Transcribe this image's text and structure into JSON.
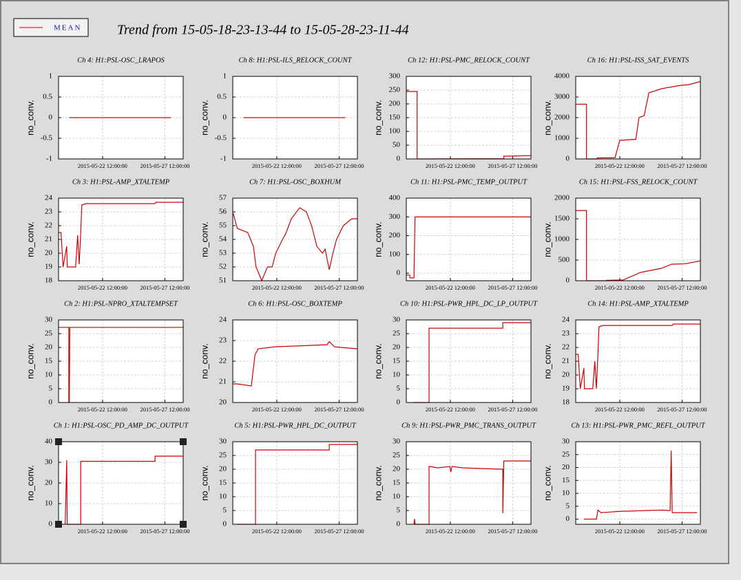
{
  "title": "Trend from 15-05-18-23-13-44 to 15-05-28-23-11-44",
  "chart_data": [
    {
      "type": "line",
      "title": "Ch 4: H1:PSL-OSC_LRAPOS",
      "ylabel": "no_conv.",
      "grid": true,
      "x": [
        "2015-05-19 20:00:00",
        "2015-05-28 00:00:00"
      ],
      "series": [
        {
          "name": "MEAN",
          "color": "#cc0000",
          "values": [
            0,
            0
          ]
        }
      ],
      "xlim": [
        "2015-05-18 23:13:44",
        "2015-05-28 23:11:44"
      ],
      "xticks": [
        "2015-05-22 12:00:00",
        "2015-05-27 12:00:00"
      ],
      "ylim": [
        -1,
        1
      ],
      "yticks": [
        -1,
        -0.5,
        0,
        0.5,
        1
      ]
    },
    {
      "type": "line",
      "title": "Ch 8: H1:PSL-ILS_RELOCK_COUNT",
      "ylabel": "no_conv.",
      "grid": true,
      "x": [
        "2015-05-19 20:00:00",
        "2015-05-28 00:00:00"
      ],
      "series": [
        {
          "name": "MEAN",
          "color": "#cc0000",
          "values": [
            0,
            0
          ]
        }
      ],
      "xlim": [
        "2015-05-18 23:13:44",
        "2015-05-28 23:11:44"
      ],
      "xticks": [
        "2015-05-22 12:00:00",
        "2015-05-27 12:00:00"
      ],
      "ylim": [
        -1,
        1
      ],
      "yticks": [
        -1,
        -0.5,
        0,
        0.5,
        1
      ]
    },
    {
      "type": "line",
      "title": "Ch 12: H1:PSL-PMC_RELOCK_COUNT",
      "ylabel": "no_conv.",
      "grid": true,
      "x": [
        "2015-05-19 00:00:00",
        "2015-05-19 20:00:00",
        "2015-05-19 20:00:00",
        "2015-05-26 19:00:00",
        "2015-05-26 19:00:00",
        "2015-05-28 23:00:00"
      ],
      "series": [
        {
          "name": "MEAN",
          "color": "#cc0000",
          "values": [
            245,
            245,
            0,
            1,
            10,
            12
          ]
        }
      ],
      "xlim": [
        "2015-05-18 23:13:44",
        "2015-05-28 23:11:44"
      ],
      "xticks": [
        "2015-05-22 12:00:00",
        "2015-05-27 12:00:00"
      ],
      "ylim": [
        0,
        300
      ],
      "yticks": [
        0,
        50,
        100,
        150,
        200,
        250,
        300
      ]
    },
    {
      "type": "line",
      "title": "Ch 16: H1:PSL-ISS_SAT_EVENTS",
      "ylabel": "no_conv.",
      "grid": true,
      "x": [
        "2015-05-19 00:00:00",
        "2015-05-19 20:00:00",
        "2015-05-19 20:00:00",
        "2015-05-20 16:00:00",
        "2015-05-20 17:00:00",
        "2015-05-22 03:00:00",
        "2015-05-22 12:00:00",
        "2015-05-23 19:00:00",
        "2015-05-24 01:00:00",
        "2015-05-24 11:00:00",
        "2015-05-24 20:00:00",
        "2015-05-25 20:00:00",
        "2015-05-27 05:00:00",
        "2015-05-28 01:00:00",
        "2015-05-28 23:00:00"
      ],
      "series": [
        {
          "name": "MEAN",
          "color": "#cc0000",
          "values": [
            2650,
            2650,
            0,
            0,
            50,
            60,
            900,
            950,
            2000,
            2100,
            3200,
            3400,
            3550,
            3600,
            3750
          ]
        }
      ],
      "xlim": [
        "2015-05-18 23:13:44",
        "2015-05-28 23:11:44"
      ],
      "xticks": [
        "2015-05-22 12:00:00",
        "2015-05-27 12:00:00"
      ],
      "ylim": [
        0,
        4000
      ],
      "yticks": [
        0,
        1000,
        2000,
        3000,
        4000
      ]
    },
    {
      "type": "line",
      "title": "Ch 3: H1:PSL-AMP_XTALTEMP",
      "ylabel": "no_conv.",
      "grid": true,
      "x": [
        "2015-05-19 00:00:00",
        "2015-05-19 04:00:00",
        "2015-05-19 08:00:00",
        "2015-05-19 15:00:00",
        "2015-05-19 16:00:00",
        "2015-05-20 08:00:00",
        "2015-05-20 12:00:00",
        "2015-05-20 15:00:00",
        "2015-05-20 18:00:00",
        "2015-05-20 20:00:00",
        "2015-05-21 04:00:00",
        "2015-05-26 17:00:00",
        "2015-05-26 19:00:00",
        "2015-05-28 23:00:00"
      ],
      "series": [
        {
          "name": "MEAN",
          "color": "#cc0000",
          "values": [
            21.5,
            21.5,
            19,
            20.5,
            19,
            19,
            21.3,
            19.2,
            21.5,
            23.5,
            23.6,
            23.6,
            23.7,
            23.7
          ]
        }
      ],
      "xlim": [
        "2015-05-18 23:13:44",
        "2015-05-28 23:11:44"
      ],
      "xticks": [
        "2015-05-22 12:00:00",
        "2015-05-27 12:00:00"
      ],
      "ylim": [
        18,
        24
      ],
      "yticks": [
        18,
        19,
        20,
        21,
        22,
        23,
        24
      ]
    },
    {
      "type": "line",
      "title": "Ch 7: H1:PSL-OSC_BOXHUM",
      "ylabel": "no_conv.",
      "grid": true,
      "x": [
        "2015-05-19 00:00:00",
        "2015-05-19 08:00:00",
        "2015-05-20 04:00:00",
        "2015-05-20 15:00:00",
        "2015-05-20 20:00:00",
        "2015-05-21 04:00:00",
        "2015-05-21 07:00:00",
        "2015-05-21 18:00:00",
        "2015-05-22 03:00:00",
        "2015-05-22 10:00:00",
        "2015-05-22 23:00:00",
        "2015-05-23 05:00:00",
        "2015-05-23 16:00:00",
        "2015-05-24 08:00:00",
        "2015-05-24 21:00:00",
        "2015-05-25 07:00:00",
        "2015-05-25 17:00:00",
        "2015-05-26 04:00:00",
        "2015-05-26 09:00:00",
        "2015-05-26 17:00:00",
        "2015-05-27 00:00:00",
        "2015-05-27 07:00:00",
        "2015-05-27 20:00:00",
        "2015-05-28 12:00:00",
        "2015-05-28 23:00:00"
      ],
      "series": [
        {
          "name": "MEAN",
          "color": "#cc0000",
          "values": [
            55.9,
            54.8,
            54.5,
            53.5,
            52,
            51.3,
            51,
            52,
            52,
            53,
            54,
            54.4,
            55.5,
            56.3,
            56,
            55,
            53.5,
            53,
            53.3,
            51.8,
            53,
            54,
            55,
            55.5,
            55.5
          ]
        }
      ],
      "xlim": [
        "2015-05-18 23:13:44",
        "2015-05-28 23:11:44"
      ],
      "xticks": [
        "2015-05-22 12:00:00",
        "2015-05-27 12:00:00"
      ],
      "ylim": [
        51,
        57
      ],
      "yticks": [
        51,
        52,
        53,
        54,
        55,
        56,
        57
      ]
    },
    {
      "type": "line",
      "title": "Ch 11: H1:PSL-PMC_TEMP_OUTPUT",
      "ylabel": "no_conv.",
      "grid": true,
      "x": [
        "2015-05-19 00:00:00",
        "2015-05-19 06:00:00",
        "2015-05-19 06:00:00",
        "2015-05-19 14:00:00",
        "2015-05-19 16:00:00",
        "2015-05-28 23:00:00"
      ],
      "series": [
        {
          "name": "MEAN",
          "color": "#cc0000",
          "values": [
            -10,
            -10,
            -25,
            -25,
            300,
            300
          ]
        }
      ],
      "xlim": [
        "2015-05-18 23:13:44",
        "2015-05-28 23:11:44"
      ],
      "xticks": [
        "2015-05-22 12:00:00",
        "2015-05-27 12:00:00"
      ],
      "ylim": [
        -40,
        400
      ],
      "yticks": [
        0,
        100,
        200,
        300,
        400
      ]
    },
    {
      "type": "line",
      "title": "Ch 15: H1:PSL-FSS_RELOCK_COUNT",
      "ylabel": "no_conv.",
      "grid": true,
      "x": [
        "2015-05-19 00:00:00",
        "2015-05-19 20:00:00",
        "2015-05-19 20:00:00",
        "2015-05-21 10:00:00",
        "2015-05-21 10:00:00",
        "2015-05-22 19:00:00",
        "2015-05-24 04:00:00",
        "2015-05-25 20:00:00",
        "2015-05-26 16:00:00",
        "2015-05-27 18:00:00",
        "2015-05-28 23:00:00"
      ],
      "series": [
        {
          "name": "MEAN",
          "color": "#cc0000",
          "values": [
            1700,
            1700,
            0,
            0,
            10,
            20,
            200,
            300,
            400,
            410,
            480
          ]
        }
      ],
      "xlim": [
        "2015-05-18 23:13:44",
        "2015-05-28 23:11:44"
      ],
      "xticks": [
        "2015-05-22 12:00:00",
        "2015-05-27 12:00:00"
      ],
      "ylim": [
        0,
        2000
      ],
      "yticks": [
        0,
        500,
        1000,
        1500,
        2000
      ]
    },
    {
      "type": "line",
      "title": "Ch 2: H1:PSL-NPRO_XTALTEMPSET",
      "ylabel": "no_conv.",
      "grid": true,
      "x": [
        "2015-05-19 00:00:00",
        "2015-05-19 19:00:00",
        "2015-05-19 19:00:00",
        "2015-05-19 20:00:00",
        "2015-05-19 21:00:00",
        "2015-05-28 23:00:00"
      ],
      "series": [
        {
          "name": "MEAN",
          "color": "#cc0000",
          "values": [
            27.3,
            27.3,
            0,
            0,
            27.3,
            27.3
          ]
        }
      ],
      "xlim": [
        "2015-05-18 23:13:44",
        "2015-05-28 23:11:44"
      ],
      "xticks": [
        "2015-05-22 12:00:00",
        "2015-05-27 12:00:00"
      ],
      "ylim": [
        0,
        30
      ],
      "yticks": [
        0,
        5,
        10,
        15,
        20,
        25,
        30
      ]
    },
    {
      "type": "line",
      "title": "Ch 6: H1:PSL-OSC_BOXTEMP",
      "ylabel": "no_conv.",
      "grid": true,
      "x": [
        "2015-05-19 00:00:00",
        "2015-05-19 08:00:00",
        "2015-05-20 11:00:00",
        "2015-05-20 18:00:00",
        "2015-05-21 00:00:00",
        "2015-05-22 09:00:00",
        "2015-05-24 15:00:00",
        "2015-05-26 13:00:00",
        "2015-05-26 17:00:00",
        "2015-05-27 03:00:00",
        "2015-05-28 23:00:00"
      ],
      "series": [
        {
          "name": "MEAN",
          "color": "#cc0000",
          "values": [
            20.9,
            20.9,
            20.8,
            22.3,
            22.6,
            22.7,
            22.75,
            22.8,
            22.95,
            22.7,
            22.6
          ]
        }
      ],
      "xlim": [
        "2015-05-18 23:13:44",
        "2015-05-28 23:11:44"
      ],
      "xticks": [
        "2015-05-22 12:00:00",
        "2015-05-27 12:00:00"
      ],
      "ylim": [
        20,
        24
      ],
      "yticks": [
        20,
        21,
        22,
        23,
        24
      ]
    },
    {
      "type": "line",
      "title": "Ch 10: H1:PSL-PWR_HPL_DC_LP_OUTPUT",
      "ylabel": "no_conv.",
      "grid": true,
      "x": [
        "2015-05-19 12:00:00",
        "2015-05-20 19:00:00",
        "2015-05-20 19:00:00",
        "2015-05-26 17:00:00",
        "2015-05-26 17:00:00",
        "2015-05-28 23:00:00"
      ],
      "series": [
        {
          "name": "MEAN",
          "color": "#cc0000",
          "values": [
            0,
            0,
            27,
            27,
            29,
            29
          ]
        }
      ],
      "xlim": [
        "2015-05-18 23:13:44",
        "2015-05-28 23:11:44"
      ],
      "xticks": [
        "2015-05-22 12:00:00",
        "2015-05-27 12:00:00"
      ],
      "ylim": [
        0,
        30
      ],
      "yticks": [
        0,
        5,
        10,
        15,
        20,
        25,
        30
      ]
    },
    {
      "type": "line",
      "title": "Ch 14: H1:PSL-AMP_XTALTEMP",
      "ylabel": "no_conv.",
      "grid": true,
      "x": [
        "2015-05-19 00:00:00",
        "2015-05-19 04:00:00",
        "2015-05-19 08:00:00",
        "2015-05-19 15:00:00",
        "2015-05-19 16:00:00",
        "2015-05-20 08:00:00",
        "2015-05-20 12:00:00",
        "2015-05-20 15:00:00",
        "2015-05-20 18:00:00",
        "2015-05-20 20:00:00",
        "2015-05-21 04:00:00",
        "2015-05-26 17:00:00",
        "2015-05-26 19:00:00",
        "2015-05-28 23:00:00"
      ],
      "series": [
        {
          "name": "MEAN",
          "color": "#cc0000",
          "values": [
            21.5,
            21.5,
            19,
            20.5,
            19,
            19,
            21,
            19,
            21.5,
            23.5,
            23.6,
            23.6,
            23.7,
            23.7
          ]
        }
      ],
      "xlim": [
        "2015-05-18 23:13:44",
        "2015-05-28 23:11:44"
      ],
      "xticks": [
        "2015-05-22 12:00:00",
        "2015-05-27 12:00:00"
      ],
      "ylim": [
        18,
        24
      ],
      "yticks": [
        18,
        19,
        20,
        21,
        22,
        23,
        24
      ]
    },
    {
      "type": "line",
      "title": "Ch 1: H1:PSL-OSC_PD_AMP_DC_OUTPUT",
      "ylabel": "no_conv.",
      "grid": true,
      "x": [
        "2015-05-19 12:00:00",
        "2015-05-19 15:00:00",
        "2015-05-19 16:00:00",
        "2015-05-20 18:00:00",
        "2015-05-20 18:00:00",
        "2015-05-26 17:00:00",
        "2015-05-26 17:00:00",
        "2015-05-28 23:00:00"
      ],
      "series": [
        {
          "name": "MEAN",
          "color": "#cc0000",
          "values": [
            0,
            31,
            0,
            0,
            30.5,
            30.5,
            33,
            33
          ]
        }
      ],
      "xlim": [
        "2015-05-18 23:13:44",
        "2015-05-28 23:11:44"
      ],
      "xticks": [
        "2015-05-22 12:00:00",
        "2015-05-27 12:00:00"
      ],
      "ylim": [
        0,
        40
      ],
      "yticks": [
        0,
        10,
        20,
        30,
        40
      ]
    },
    {
      "type": "line",
      "title": "Ch 5: H1:PSL-PWR_HPL_DC_OUTPUT",
      "ylabel": "no_conv.",
      "grid": true,
      "x": [
        "2015-05-19 08:00:00",
        "2015-05-20 19:00:00",
        "2015-05-20 19:00:00",
        "2015-05-26 17:00:00",
        "2015-05-26 17:00:00",
        "2015-05-28 23:00:00"
      ],
      "series": [
        {
          "name": "MEAN",
          "color": "#cc0000",
          "values": [
            0,
            0,
            27,
            27,
            29,
            29
          ]
        }
      ],
      "xlim": [
        "2015-05-18 23:13:44",
        "2015-05-28 23:11:44"
      ],
      "xticks": [
        "2015-05-22 12:00:00",
        "2015-05-27 12:00:00"
      ],
      "ylim": [
        0,
        30
      ],
      "yticks": [
        0,
        5,
        10,
        15,
        20,
        25,
        30
      ]
    },
    {
      "type": "line",
      "title": "Ch 9: H1:PSL-PWR_PMC_TRANS_OUTPUT",
      "ylabel": "no_conv.",
      "grid": true,
      "x": [
        "2015-05-19 14:00:00",
        "2015-05-19 15:00:00",
        "2015-05-19 16:00:00",
        "2015-05-20 19:00:00",
        "2015-05-20 19:00:00",
        "2015-05-21 12:00:00",
        "2015-05-22 11:00:00",
        "2015-05-22 13:00:00",
        "2015-05-22 15:00:00",
        "2015-05-23 12:00:00",
        "2015-05-26 17:00:00",
        "2015-05-26 17:00:00",
        "2015-05-26 19:00:00",
        "2015-05-28 23:00:00"
      ],
      "series": [
        {
          "name": "MEAN",
          "color": "#cc0000",
          "values": [
            0,
            2,
            0,
            0,
            21,
            20.5,
            21,
            19,
            21,
            20.5,
            20,
            4,
            23,
            23
          ]
        }
      ],
      "xlim": [
        "2015-05-18 23:13:44",
        "2015-05-28 23:11:44"
      ],
      "xticks": [
        "2015-05-22 12:00:00",
        "2015-05-27 12:00:00"
      ],
      "ylim": [
        0,
        30
      ],
      "yticks": [
        0,
        5,
        10,
        15,
        20,
        25,
        30
      ]
    },
    {
      "type": "line",
      "title": "Ch 13: H1:PSL-PWR_PMC_REFL_OUTPUT",
      "ylabel": "no_conv.",
      "grid": true,
      "x": [
        "2015-05-19 15:00:00",
        "2015-05-20 15:00:00",
        "2015-05-20 18:00:00",
        "2015-05-21 00:00:00",
        "2015-05-22 12:00:00",
        "2015-05-25 20:00:00",
        "2015-05-26 13:00:00",
        "2015-05-26 15:00:00",
        "2015-05-26 17:00:00",
        "2015-05-28 17:00:00"
      ],
      "series": [
        {
          "name": "MEAN",
          "color": "#cc0000",
          "values": [
            0,
            0,
            3.5,
            2.5,
            3,
            3.5,
            3.3,
            26.5,
            2.5,
            2.5
          ]
        }
      ],
      "xlim": [
        "2015-05-18 23:13:44",
        "2015-05-28 23:11:44"
      ],
      "xticks": [
        "2015-05-22 12:00:00",
        "2015-05-27 12:00:00"
      ],
      "ylim": [
        -2,
        30
      ],
      "yticks": [
        0,
        5,
        10,
        15,
        20,
        25,
        30
      ]
    }
  ]
}
